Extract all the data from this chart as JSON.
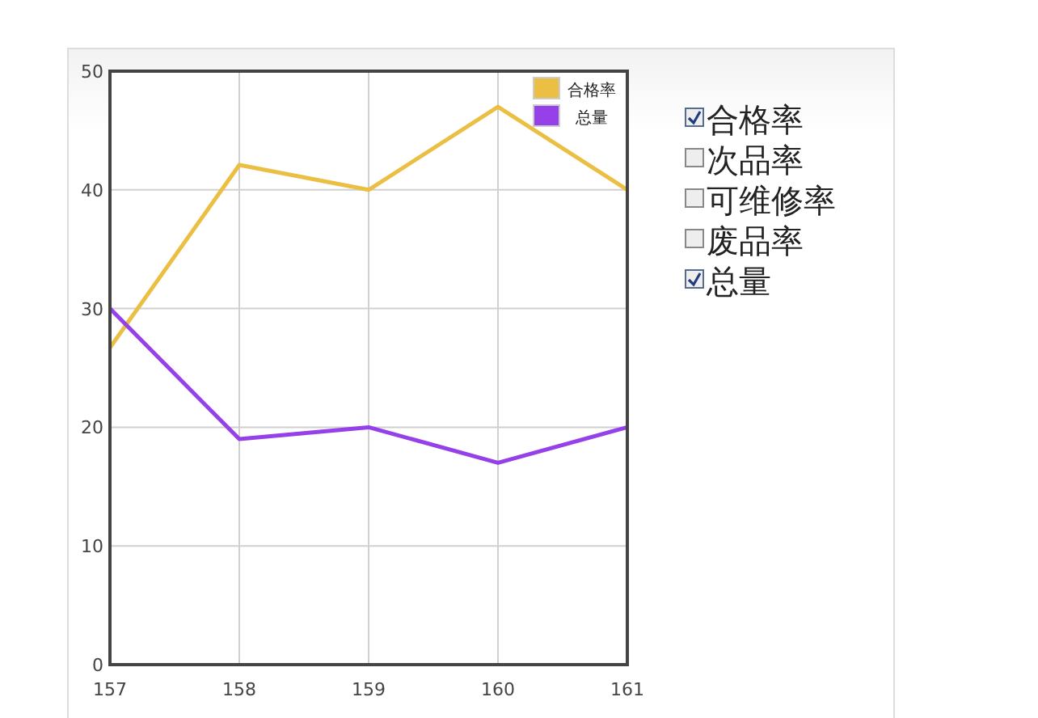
{
  "chart_data": [
    {
      "type": "line",
      "x": [
        157,
        158,
        159,
        160,
        161
      ],
      "xlim": [
        157,
        161
      ],
      "xticks": [
        157,
        158,
        159,
        160,
        161
      ],
      "ylim": [
        0,
        50
      ],
      "yticks": [
        0,
        10,
        20,
        30,
        40,
        50
      ],
      "grid": true,
      "legend": "top right",
      "series": [
        {
          "name": "合格率",
          "color": "#ebbf43",
          "values": [
            26.7,
            42.1,
            40,
            47,
            40
          ]
        },
        {
          "name": "总量",
          "color": "#9540e8",
          "values": [
            30,
            19,
            20,
            17,
            20
          ]
        }
      ]
    },
    {
      "type": "other",
      "annotations": [
        "合格率",
        "次品率",
        "可维修率",
        "废品率",
        "总量"
      ]
    }
  ]
}
